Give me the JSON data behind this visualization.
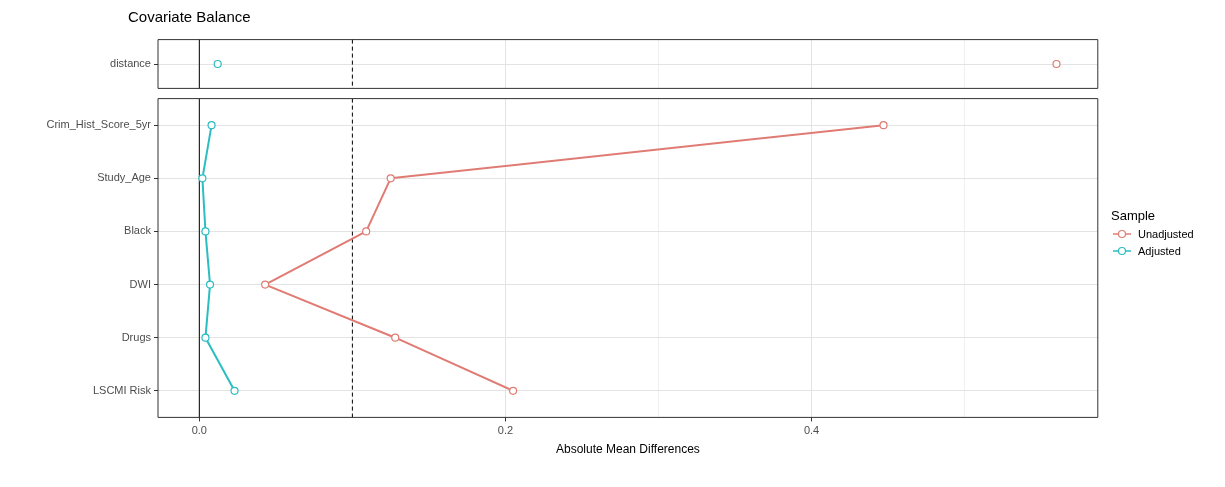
{
  "chart_data": [
    {
      "type": "line",
      "title": "Covariate Balance",
      "categories": [
        "distance"
      ],
      "series": [
        {
          "color": "#e07b74",
          "values": [
            0.56
          ]
        },
        {
          "color": "#2bbdc1",
          "values": [
            0.012
          ]
        }
      ],
      "orientation": "horizontal",
      "xlim": [
        -0.027,
        0.587
      ],
      "tick_labels": "y",
      "grid": true,
      "marker": "circle",
      "line_style": "solid",
      "ref_lines": [
        {
          "axis": "x",
          "value": 0,
          "line_style": "solid",
          "color": "#000000"
        },
        {
          "axis": "x",
          "value": 0.1,
          "line_style": "dashed",
          "color": "#000000"
        }
      ]
    },
    {
      "type": "line",
      "categories": [
        "Crim_Hist_Score_5yr",
        "Study_Age",
        "Black",
        "DWI",
        "Drugs",
        "LSCMI Risk"
      ],
      "series": [
        {
          "name": "Unadjusted",
          "color": "#e07b74",
          "values": [
            0.447,
            0.125,
            0.109,
            0.043,
            0.128,
            0.205
          ]
        },
        {
          "name": "Adjusted",
          "color": "#2bbdc1",
          "values": [
            0.008,
            0.002,
            0.004,
            0.007,
            0.004,
            0.023
          ]
        }
      ],
      "orientation": "horizontal",
      "xlabel": "Absolute Mean Differences",
      "xlim": [
        -0.027,
        0.587
      ],
      "xticks": [
        {
          "value": 0,
          "label": "0.0"
        },
        {
          "value": 0.1,
          "label": null
        },
        0.2,
        {
          "value": 0.3,
          "label": null
        },
        0.4,
        {
          "value": 0.5,
          "label": null
        }
      ],
      "grid": true,
      "marker": "circle",
      "line_style": "solid",
      "legend": "right",
      "legend_title": "Sample",
      "ref_lines": [
        {
          "axis": "x",
          "value": 0,
          "line_style": "solid",
          "color": "#000000"
        },
        {
          "axis": "x",
          "value": 0.1,
          "line_style": "dashed",
          "color": "#000000"
        }
      ]
    }
  ]
}
